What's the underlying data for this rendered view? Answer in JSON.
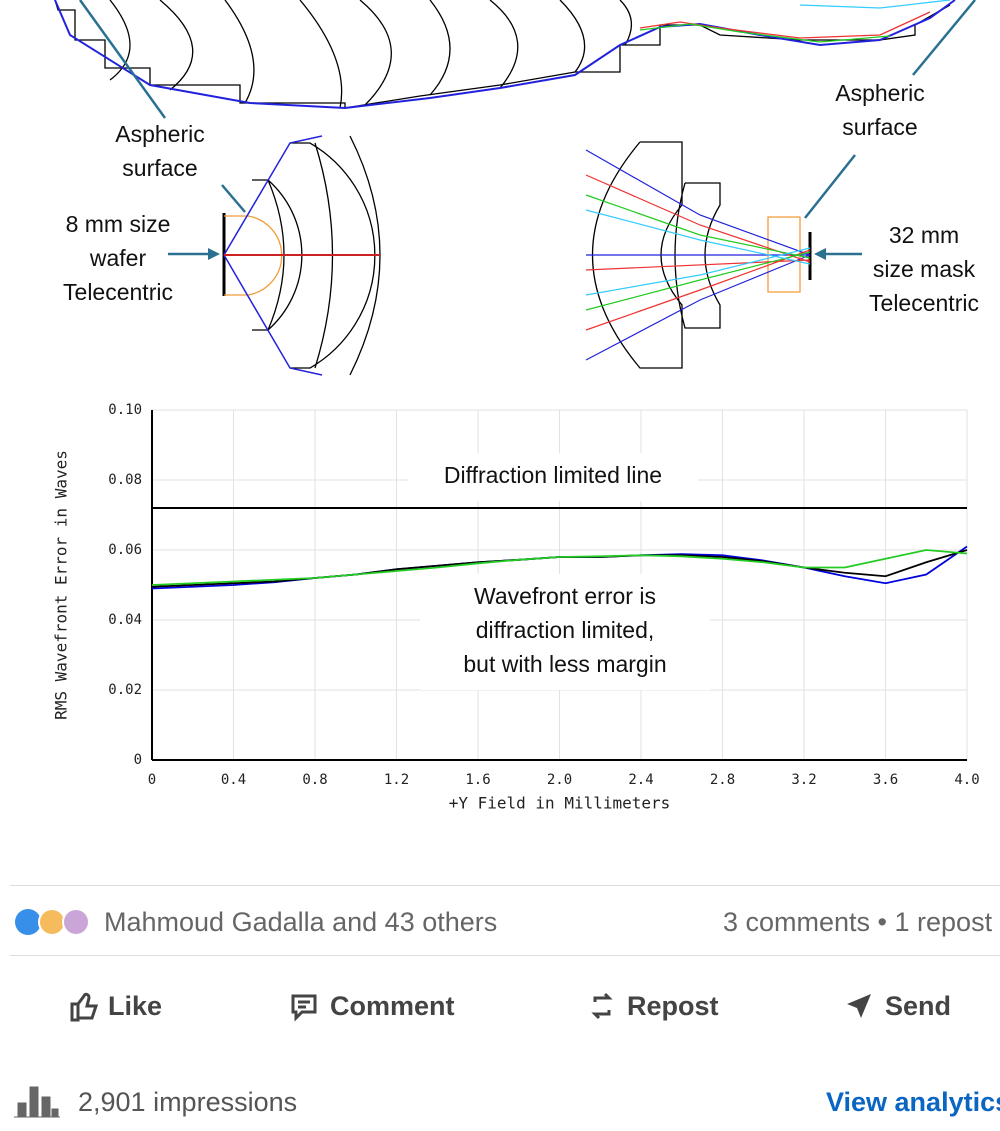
{
  "diagram": {
    "aspheric_left": [
      "Aspheric",
      "surface"
    ],
    "aspheric_right": [
      "Aspheric",
      "surface"
    ],
    "wafer": [
      "8 mm size",
      "wafer",
      "Telecentric"
    ],
    "mask": [
      "32 mm",
      "size mask",
      "Telecentric"
    ]
  },
  "chart_data": {
    "type": "line",
    "y_label": "RMS Wavefront Error in Waves",
    "x_label": "+Y Field in Millimeters",
    "x": [
      0,
      0.2,
      0.4,
      0.6,
      0.8,
      1.0,
      1.2,
      1.4,
      1.6,
      1.8,
      2.0,
      2.2,
      2.4,
      2.6,
      2.8,
      3.0,
      3.2,
      3.4,
      3.6,
      3.8,
      4.0
    ],
    "series": [
      {
        "color": "#0000dd",
        "values": [
          0.049,
          0.0495,
          0.05,
          0.0508,
          0.052,
          0.053,
          0.0545,
          0.0555,
          0.0565,
          0.0572,
          0.058,
          0.058,
          0.0585,
          0.0588,
          0.0585,
          0.057,
          0.055,
          0.0525,
          0.0505,
          0.053,
          0.061
        ]
      },
      {
        "color": "#000000",
        "values": [
          0.0495,
          0.05,
          0.0505,
          0.051,
          0.052,
          0.053,
          0.0545,
          0.0555,
          0.0565,
          0.0572,
          0.058,
          0.058,
          0.0585,
          0.0585,
          0.058,
          0.0568,
          0.055,
          0.0535,
          0.0525,
          0.0565,
          0.06
        ]
      },
      {
        "color": "#22cc22",
        "values": [
          0.05,
          0.0505,
          0.051,
          0.0515,
          0.052,
          0.053,
          0.054,
          0.055,
          0.0562,
          0.0572,
          0.058,
          0.0582,
          0.0585,
          0.0582,
          0.0575,
          0.0565,
          0.055,
          0.055,
          0.0575,
          0.06,
          0.059
        ]
      }
    ],
    "threshold": 0.072,
    "annotations": [
      [
        "Diffraction limited line"
      ],
      [
        "Wavefront error is",
        "diffraction limited,",
        "but with less margin"
      ]
    ],
    "xlim": [
      0,
      4
    ],
    "xticks": [
      0,
      0.4,
      0.8,
      1.2,
      1.6,
      {
        "value": 2,
        "label": "2.0"
      },
      2.4,
      2.8,
      3.2,
      3.6,
      {
        "value": 4,
        "label": "4.0"
      }
    ],
    "ylim": [
      0,
      0.1
    ],
    "yticks": [
      0,
      0.02,
      0.04,
      0.06,
      0.08,
      {
        "value": 0.1,
        "label": "0.10"
      }
    ],
    "grid": true
  },
  "social": {
    "reactions": "Mahmoud Gadalla and 43 others",
    "stats": "3 comments • 1 repost",
    "actions": [
      "Like",
      "Comment",
      "Repost",
      "Send"
    ],
    "impressions": "2,901 impressions",
    "analytics": "View analytics"
  }
}
